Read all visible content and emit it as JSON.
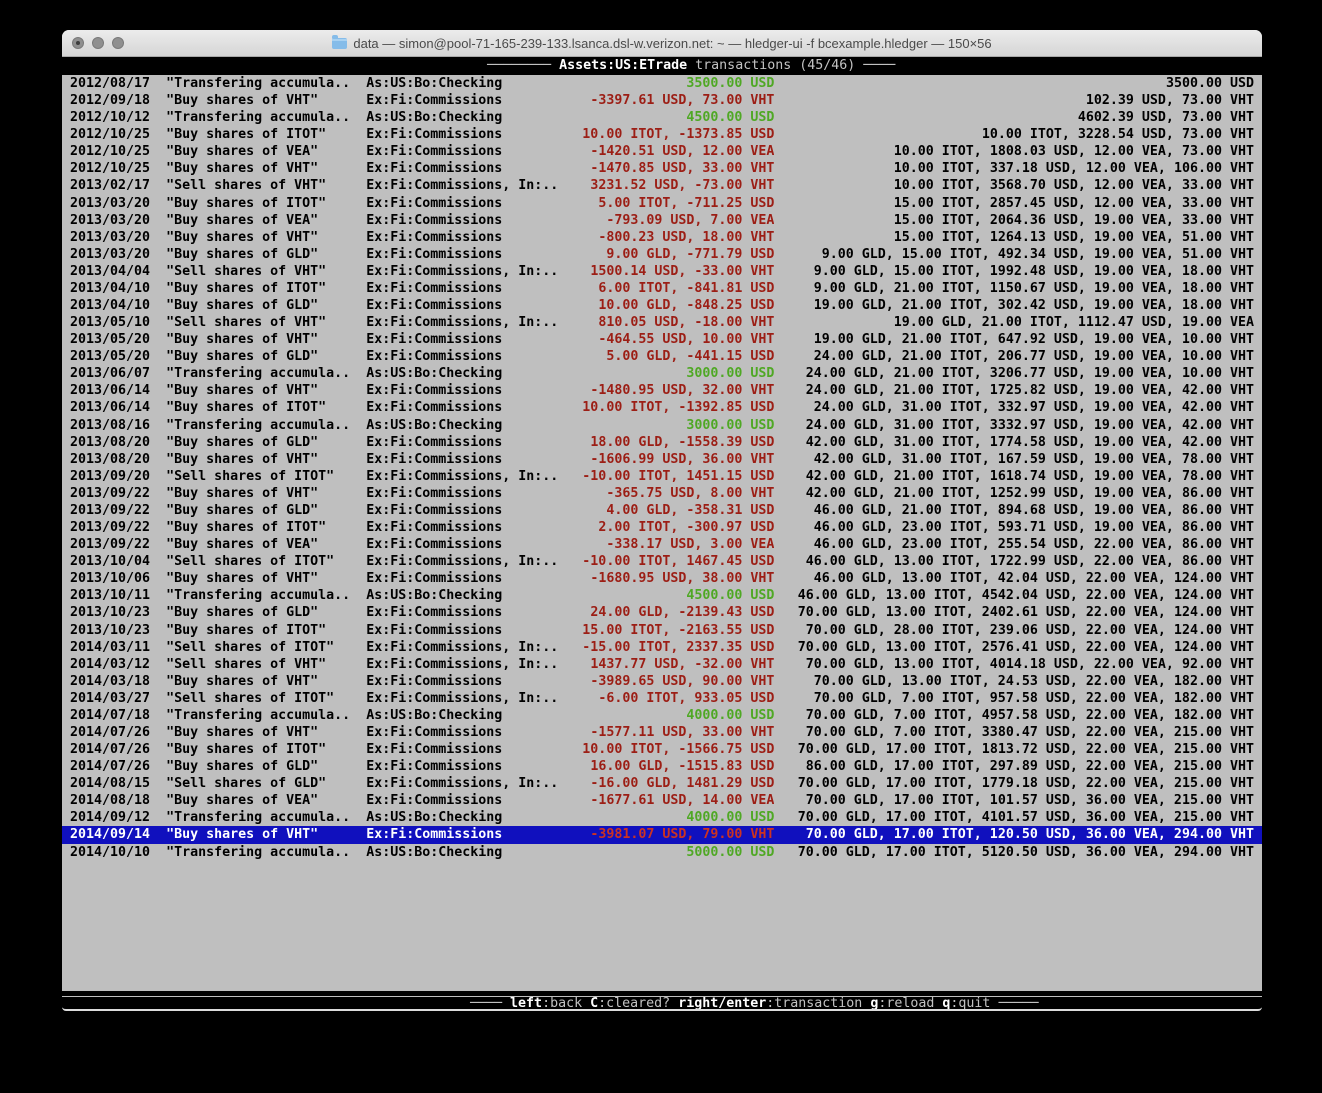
{
  "window": {
    "title": "data — simon@pool-71-165-239-133.lsanca.dsl-w.verizon.net: ~ — hledger-ui -f bcexample.hledger — 150×56"
  },
  "header": {
    "dashes_left": "──────── ",
    "account": "Assets:US:ETrade",
    "rest": " transactions (45/46) ",
    "dashes_right": "────"
  },
  "footer": {
    "dashes_left": "──── ",
    "items": [
      {
        "key": "left",
        "label": "back"
      },
      {
        "key": "C",
        "label": "cleared?"
      },
      {
        "key": "right/enter",
        "label": "transaction"
      },
      {
        "key": "g",
        "label": "reload"
      },
      {
        "key": "q",
        "label": "quit"
      }
    ],
    "dashes_right": " ─────"
  },
  "colors": {
    "background": "#bfbfbf",
    "negative": "#9c1e15",
    "positive": "#4fa824",
    "selection_bg": "#1010be",
    "selection_amount": "#cc3322"
  },
  "table": {
    "selected_index": 44,
    "rows": [
      {
        "date": "2012/08/17",
        "description": "\"Transfering accumula..",
        "account": "As:US:Bo:Checking",
        "amount": "3500.00 USD",
        "sign": "pos",
        "balance": "3500.00 USD"
      },
      {
        "date": "2012/09/18",
        "description": "\"Buy shares of VHT\"",
        "account": "Ex:Fi:Commissions",
        "amount": "-3397.61 USD, 73.00 VHT",
        "sign": "neg",
        "balance": "102.39 USD, 73.00 VHT"
      },
      {
        "date": "2012/10/12",
        "description": "\"Transfering accumula..",
        "account": "As:US:Bo:Checking",
        "amount": "4500.00 USD",
        "sign": "pos",
        "balance": "4602.39 USD, 73.00 VHT"
      },
      {
        "date": "2012/10/25",
        "description": "\"Buy shares of ITOT\"",
        "account": "Ex:Fi:Commissions",
        "amount": "10.00 ITOT, -1373.85 USD",
        "sign": "neg",
        "balance": "10.00 ITOT, 3228.54 USD, 73.00 VHT"
      },
      {
        "date": "2012/10/25",
        "description": "\"Buy shares of VEA\"",
        "account": "Ex:Fi:Commissions",
        "amount": "-1420.51 USD, 12.00 VEA",
        "sign": "neg",
        "balance": "10.00 ITOT, 1808.03 USD, 12.00 VEA, 73.00 VHT"
      },
      {
        "date": "2012/10/25",
        "description": "\"Buy shares of VHT\"",
        "account": "Ex:Fi:Commissions",
        "amount": "-1470.85 USD, 33.00 VHT",
        "sign": "neg",
        "balance": "10.00 ITOT, 337.18 USD, 12.00 VEA, 106.00 VHT"
      },
      {
        "date": "2013/02/17",
        "description": "\"Sell shares of VHT\"",
        "account": "Ex:Fi:Commissions, In:..",
        "amount": "3231.52 USD, -73.00 VHT",
        "sign": "neg",
        "balance": "10.00 ITOT, 3568.70 USD, 12.00 VEA, 33.00 VHT"
      },
      {
        "date": "2013/03/20",
        "description": "\"Buy shares of ITOT\"",
        "account": "Ex:Fi:Commissions",
        "amount": "5.00 ITOT, -711.25 USD",
        "sign": "neg",
        "balance": "15.00 ITOT, 2857.45 USD, 12.00 VEA, 33.00 VHT"
      },
      {
        "date": "2013/03/20",
        "description": "\"Buy shares of VEA\"",
        "account": "Ex:Fi:Commissions",
        "amount": "-793.09 USD, 7.00 VEA",
        "sign": "neg",
        "balance": "15.00 ITOT, 2064.36 USD, 19.00 VEA, 33.00 VHT"
      },
      {
        "date": "2013/03/20",
        "description": "\"Buy shares of VHT\"",
        "account": "Ex:Fi:Commissions",
        "amount": "-800.23 USD, 18.00 VHT",
        "sign": "neg",
        "balance": "15.00 ITOT, 1264.13 USD, 19.00 VEA, 51.00 VHT"
      },
      {
        "date": "2013/03/20",
        "description": "\"Buy shares of GLD\"",
        "account": "Ex:Fi:Commissions",
        "amount": "9.00 GLD, -771.79 USD",
        "sign": "neg",
        "balance": "9.00 GLD, 15.00 ITOT, 492.34 USD, 19.00 VEA, 51.00 VHT"
      },
      {
        "date": "2013/04/04",
        "description": "\"Sell shares of VHT\"",
        "account": "Ex:Fi:Commissions, In:..",
        "amount": "1500.14 USD, -33.00 VHT",
        "sign": "neg",
        "balance": "9.00 GLD, 15.00 ITOT, 1992.48 USD, 19.00 VEA, 18.00 VHT"
      },
      {
        "date": "2013/04/10",
        "description": "\"Buy shares of ITOT\"",
        "account": "Ex:Fi:Commissions",
        "amount": "6.00 ITOT, -841.81 USD",
        "sign": "neg",
        "balance": "9.00 GLD, 21.00 ITOT, 1150.67 USD, 19.00 VEA, 18.00 VHT"
      },
      {
        "date": "2013/04/10",
        "description": "\"Buy shares of GLD\"",
        "account": "Ex:Fi:Commissions",
        "amount": "10.00 GLD, -848.25 USD",
        "sign": "neg",
        "balance": "19.00 GLD, 21.00 ITOT, 302.42 USD, 19.00 VEA, 18.00 VHT"
      },
      {
        "date": "2013/05/10",
        "description": "\"Sell shares of VHT\"",
        "account": "Ex:Fi:Commissions, In:..",
        "amount": "810.05 USD, -18.00 VHT",
        "sign": "neg",
        "balance": "19.00 GLD, 21.00 ITOT, 1112.47 USD, 19.00 VEA"
      },
      {
        "date": "2013/05/20",
        "description": "\"Buy shares of VHT\"",
        "account": "Ex:Fi:Commissions",
        "amount": "-464.55 USD, 10.00 VHT",
        "sign": "neg",
        "balance": "19.00 GLD, 21.00 ITOT, 647.92 USD, 19.00 VEA, 10.00 VHT"
      },
      {
        "date": "2013/05/20",
        "description": "\"Buy shares of GLD\"",
        "account": "Ex:Fi:Commissions",
        "amount": "5.00 GLD, -441.15 USD",
        "sign": "neg",
        "balance": "24.00 GLD, 21.00 ITOT, 206.77 USD, 19.00 VEA, 10.00 VHT"
      },
      {
        "date": "2013/06/07",
        "description": "\"Transfering accumula..",
        "account": "As:US:Bo:Checking",
        "amount": "3000.00 USD",
        "sign": "pos",
        "balance": "24.00 GLD, 21.00 ITOT, 3206.77 USD, 19.00 VEA, 10.00 VHT"
      },
      {
        "date": "2013/06/14",
        "description": "\"Buy shares of VHT\"",
        "account": "Ex:Fi:Commissions",
        "amount": "-1480.95 USD, 32.00 VHT",
        "sign": "neg",
        "balance": "24.00 GLD, 21.00 ITOT, 1725.82 USD, 19.00 VEA, 42.00 VHT"
      },
      {
        "date": "2013/06/14",
        "description": "\"Buy shares of ITOT\"",
        "account": "Ex:Fi:Commissions",
        "amount": "10.00 ITOT, -1392.85 USD",
        "sign": "neg",
        "balance": "24.00 GLD, 31.00 ITOT, 332.97 USD, 19.00 VEA, 42.00 VHT"
      },
      {
        "date": "2013/08/16",
        "description": "\"Transfering accumula..",
        "account": "As:US:Bo:Checking",
        "amount": "3000.00 USD",
        "sign": "pos",
        "balance": "24.00 GLD, 31.00 ITOT, 3332.97 USD, 19.00 VEA, 42.00 VHT"
      },
      {
        "date": "2013/08/20",
        "description": "\"Buy shares of GLD\"",
        "account": "Ex:Fi:Commissions",
        "amount": "18.00 GLD, -1558.39 USD",
        "sign": "neg",
        "balance": "42.00 GLD, 31.00 ITOT, 1774.58 USD, 19.00 VEA, 42.00 VHT"
      },
      {
        "date": "2013/08/20",
        "description": "\"Buy shares of VHT\"",
        "account": "Ex:Fi:Commissions",
        "amount": "-1606.99 USD, 36.00 VHT",
        "sign": "neg",
        "balance": "42.00 GLD, 31.00 ITOT, 167.59 USD, 19.00 VEA, 78.00 VHT"
      },
      {
        "date": "2013/09/20",
        "description": "\"Sell shares of ITOT\"",
        "account": "Ex:Fi:Commissions, In:..",
        "amount": "-10.00 ITOT, 1451.15 USD",
        "sign": "neg",
        "balance": "42.00 GLD, 21.00 ITOT, 1618.74 USD, 19.00 VEA, 78.00 VHT"
      },
      {
        "date": "2013/09/22",
        "description": "\"Buy shares of VHT\"",
        "account": "Ex:Fi:Commissions",
        "amount": "-365.75 USD, 8.00 VHT",
        "sign": "neg",
        "balance": "42.00 GLD, 21.00 ITOT, 1252.99 USD, 19.00 VEA, 86.00 VHT"
      },
      {
        "date": "2013/09/22",
        "description": "\"Buy shares of GLD\"",
        "account": "Ex:Fi:Commissions",
        "amount": "4.00 GLD, -358.31 USD",
        "sign": "neg",
        "balance": "46.00 GLD, 21.00 ITOT, 894.68 USD, 19.00 VEA, 86.00 VHT"
      },
      {
        "date": "2013/09/22",
        "description": "\"Buy shares of ITOT\"",
        "account": "Ex:Fi:Commissions",
        "amount": "2.00 ITOT, -300.97 USD",
        "sign": "neg",
        "balance": "46.00 GLD, 23.00 ITOT, 593.71 USD, 19.00 VEA, 86.00 VHT"
      },
      {
        "date": "2013/09/22",
        "description": "\"Buy shares of VEA\"",
        "account": "Ex:Fi:Commissions",
        "amount": "-338.17 USD, 3.00 VEA",
        "sign": "neg",
        "balance": "46.00 GLD, 23.00 ITOT, 255.54 USD, 22.00 VEA, 86.00 VHT"
      },
      {
        "date": "2013/10/04",
        "description": "\"Sell shares of ITOT\"",
        "account": "Ex:Fi:Commissions, In:..",
        "amount": "-10.00 ITOT, 1467.45 USD",
        "sign": "neg",
        "balance": "46.00 GLD, 13.00 ITOT, 1722.99 USD, 22.00 VEA, 86.00 VHT"
      },
      {
        "date": "2013/10/06",
        "description": "\"Buy shares of VHT\"",
        "account": "Ex:Fi:Commissions",
        "amount": "-1680.95 USD, 38.00 VHT",
        "sign": "neg",
        "balance": "46.00 GLD, 13.00 ITOT, 42.04 USD, 22.00 VEA, 124.00 VHT"
      },
      {
        "date": "2013/10/11",
        "description": "\"Transfering accumula..",
        "account": "As:US:Bo:Checking",
        "amount": "4500.00 USD",
        "sign": "pos",
        "balance": "46.00 GLD, 13.00 ITOT, 4542.04 USD, 22.00 VEA, 124.00 VHT"
      },
      {
        "date": "2013/10/23",
        "description": "\"Buy shares of GLD\"",
        "account": "Ex:Fi:Commissions",
        "amount": "24.00 GLD, -2139.43 USD",
        "sign": "neg",
        "balance": "70.00 GLD, 13.00 ITOT, 2402.61 USD, 22.00 VEA, 124.00 VHT"
      },
      {
        "date": "2013/10/23",
        "description": "\"Buy shares of ITOT\"",
        "account": "Ex:Fi:Commissions",
        "amount": "15.00 ITOT, -2163.55 USD",
        "sign": "neg",
        "balance": "70.00 GLD, 28.00 ITOT, 239.06 USD, 22.00 VEA, 124.00 VHT"
      },
      {
        "date": "2014/03/11",
        "description": "\"Sell shares of ITOT\"",
        "account": "Ex:Fi:Commissions, In:..",
        "amount": "-15.00 ITOT, 2337.35 USD",
        "sign": "neg",
        "balance": "70.00 GLD, 13.00 ITOT, 2576.41 USD, 22.00 VEA, 124.00 VHT"
      },
      {
        "date": "2014/03/12",
        "description": "\"Sell shares of VHT\"",
        "account": "Ex:Fi:Commissions, In:..",
        "amount": "1437.77 USD, -32.00 VHT",
        "sign": "neg",
        "balance": "70.00 GLD, 13.00 ITOT, 4014.18 USD, 22.00 VEA, 92.00 VHT"
      },
      {
        "date": "2014/03/18",
        "description": "\"Buy shares of VHT\"",
        "account": "Ex:Fi:Commissions",
        "amount": "-3989.65 USD, 90.00 VHT",
        "sign": "neg",
        "balance": "70.00 GLD, 13.00 ITOT, 24.53 USD, 22.00 VEA, 182.00 VHT"
      },
      {
        "date": "2014/03/27",
        "description": "\"Sell shares of ITOT\"",
        "account": "Ex:Fi:Commissions, In:..",
        "amount": "-6.00 ITOT, 933.05 USD",
        "sign": "neg",
        "balance": "70.00 GLD, 7.00 ITOT, 957.58 USD, 22.00 VEA, 182.00 VHT"
      },
      {
        "date": "2014/07/18",
        "description": "\"Transfering accumula..",
        "account": "As:US:Bo:Checking",
        "amount": "4000.00 USD",
        "sign": "pos",
        "balance": "70.00 GLD, 7.00 ITOT, 4957.58 USD, 22.00 VEA, 182.00 VHT"
      },
      {
        "date": "2014/07/26",
        "description": "\"Buy shares of VHT\"",
        "account": "Ex:Fi:Commissions",
        "amount": "-1577.11 USD, 33.00 VHT",
        "sign": "neg",
        "balance": "70.00 GLD, 7.00 ITOT, 3380.47 USD, 22.00 VEA, 215.00 VHT"
      },
      {
        "date": "2014/07/26",
        "description": "\"Buy shares of ITOT\"",
        "account": "Ex:Fi:Commissions",
        "amount": "10.00 ITOT, -1566.75 USD",
        "sign": "neg",
        "balance": "70.00 GLD, 17.00 ITOT, 1813.72 USD, 22.00 VEA, 215.00 VHT"
      },
      {
        "date": "2014/07/26",
        "description": "\"Buy shares of GLD\"",
        "account": "Ex:Fi:Commissions",
        "amount": "16.00 GLD, -1515.83 USD",
        "sign": "neg",
        "balance": "86.00 GLD, 17.00 ITOT, 297.89 USD, 22.00 VEA, 215.00 VHT"
      },
      {
        "date": "2014/08/15",
        "description": "\"Sell shares of GLD\"",
        "account": "Ex:Fi:Commissions, In:..",
        "amount": "-16.00 GLD, 1481.29 USD",
        "sign": "neg",
        "balance": "70.00 GLD, 17.00 ITOT, 1779.18 USD, 22.00 VEA, 215.00 VHT"
      },
      {
        "date": "2014/08/18",
        "description": "\"Buy shares of VEA\"",
        "account": "Ex:Fi:Commissions",
        "amount": "-1677.61 USD, 14.00 VEA",
        "sign": "neg",
        "balance": "70.00 GLD, 17.00 ITOT, 101.57 USD, 36.00 VEA, 215.00 VHT"
      },
      {
        "date": "2014/09/12",
        "description": "\"Transfering accumula..",
        "account": "As:US:Bo:Checking",
        "amount": "4000.00 USD",
        "sign": "pos",
        "balance": "70.00 GLD, 17.00 ITOT, 4101.57 USD, 36.00 VEA, 215.00 VHT"
      },
      {
        "date": "2014/09/14",
        "description": "\"Buy shares of VHT\"",
        "account": "Ex:Fi:Commissions",
        "amount": "-3981.07 USD, 79.00 VHT",
        "sign": "neg",
        "balance": "70.00 GLD, 17.00 ITOT, 120.50 USD, 36.00 VEA, 294.00 VHT"
      },
      {
        "date": "2014/10/10",
        "description": "\"Transfering accumula..",
        "account": "As:US:Bo:Checking",
        "amount": "5000.00 USD",
        "sign": "pos",
        "balance": "70.00 GLD, 17.00 ITOT, 5120.50 USD, 36.00 VEA, 294.00 VHT"
      }
    ]
  }
}
